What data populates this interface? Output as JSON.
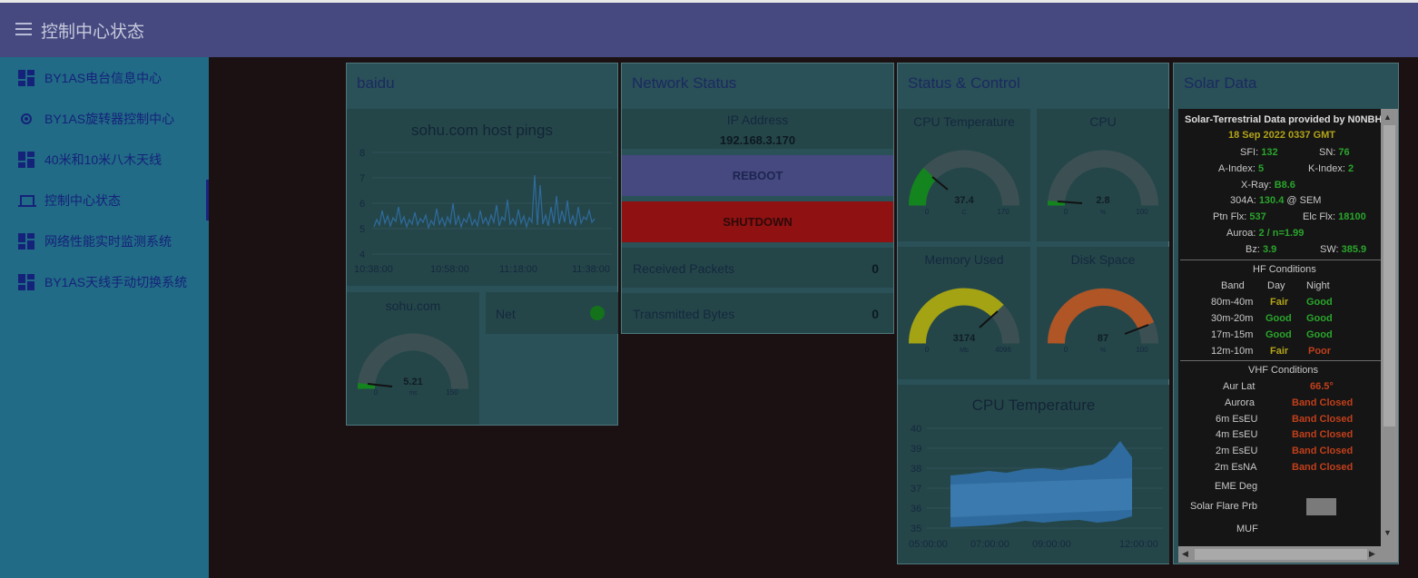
{
  "header": {
    "title": "控制中心状态",
    "menu_icon": "hamburger-icon"
  },
  "sidebar": {
    "items": [
      {
        "label": "BY1AS电台信息中心",
        "icon": "dashboard-icon"
      },
      {
        "label": "BY1AS旋转器控制中心",
        "icon": "target-icon"
      },
      {
        "label": "40米和10米八木天线",
        "icon": "dashboard-icon"
      },
      {
        "label": "控制中心状态",
        "icon": "laptop-icon",
        "active": true
      },
      {
        "label": "网络性能实时监测系统",
        "icon": "dashboard-icon"
      },
      {
        "label": "BY1AS天线手动切换系统",
        "icon": "dashboard-icon"
      }
    ]
  },
  "cards": {
    "baidu": {
      "title": "baidu",
      "ping_chart": {
        "title": "sohu.com host pings",
        "y_ticks": [
          "8",
          "7",
          "6",
          "5",
          "4"
        ],
        "x_ticks": [
          "10:38:00",
          "10:58:00",
          "11:18:00",
          "11:38:00"
        ]
      },
      "gauge": {
        "label": "sohu.com",
        "value": "5.21",
        "unit": "ms",
        "min": "0",
        "max": "150"
      },
      "net": {
        "label": "Net"
      }
    },
    "network": {
      "title": "Network Status",
      "ip_label": "IP Address",
      "ip_value": "192.168.3.170",
      "reboot": "REBOOT",
      "shutdown": "SHUTDOWN",
      "received_label": "Received Packets",
      "received_value": "0",
      "transmitted_label": "Transmitted Bytes",
      "transmitted_value": "0"
    },
    "status": {
      "title": "Status & Control",
      "cpu_temp": {
        "label": "CPU Temperature",
        "value": "37.4",
        "unit": "C",
        "min": "0",
        "max": "170"
      },
      "cpu": {
        "label": "CPU",
        "value": "2.8",
        "unit": "%",
        "min": "0",
        "max": "100"
      },
      "memory": {
        "label": "Memory Used",
        "value": "3174",
        "unit": "Mb",
        "min": "0",
        "max": "4096"
      },
      "disk": {
        "label": "Disk Space",
        "value": "87",
        "unit": "%",
        "min": "0",
        "max": "100"
      },
      "temp_chart": {
        "title": "CPU Temperature",
        "y_ticks": [
          "40",
          "39",
          "38",
          "37",
          "36",
          "35"
        ],
        "x_ticks": [
          "05:00:00",
          "07:00:00",
          "09:00:00",
          "12:00:00"
        ]
      }
    },
    "solar": {
      "title": "Solar Data",
      "header": "Solar-Terrestrial Data provided by N0NBH",
      "date": "18 Sep 2022 0337 GMT",
      "sfi_label": "SFI:",
      "sfi": "132",
      "sn_label": "SN:",
      "sn": "76",
      "aindex_label": "A-Index:",
      "aindex": "5",
      "kindex_label": "K-Index:",
      "kindex": "2",
      "xray_label": "X-Ray:",
      "xray": "B8.6",
      "a304_label": "304A:",
      "a304": "130.4",
      "a304_suffix": "@ SEM",
      "ptn_label": "Ptn Flx:",
      "ptn": "537",
      "elc_label": "Elc Flx:",
      "elc": "18100",
      "auroa_label": "Auroa:",
      "auroa": "2 / n=1.99",
      "bz_label": "Bz:",
      "bz": "3.9",
      "sw_label": "SW:",
      "sw": "385.9",
      "hf_title": "HF Conditions",
      "hf_headers": [
        "Band",
        "Day",
        "Night"
      ],
      "hf_rows": [
        {
          "band": "80m-40m",
          "day": "Fair",
          "night": "Good"
        },
        {
          "band": "30m-20m",
          "day": "Good",
          "night": "Good"
        },
        {
          "band": "17m-15m",
          "day": "Good",
          "night": "Good"
        },
        {
          "band": "12m-10m",
          "day": "Fair",
          "night": "Poor"
        }
      ],
      "vhf_title": "VHF Conditions",
      "vhf_rows": [
        {
          "label": "Aur Lat",
          "value": "66.5°"
        },
        {
          "label": "Aurora",
          "value": "Band Closed"
        },
        {
          "label": "6m EsEU",
          "value": "Band Closed"
        },
        {
          "label": "4m EsEU",
          "value": "Band Closed"
        },
        {
          "label": "2m EsEU",
          "value": "Band Closed"
        },
        {
          "label": "2m EsNA",
          "value": "Band Closed"
        }
      ],
      "eme_label": "EME Deg",
      "flare_label": "Solar Flare Prb",
      "muf_label": "MUF"
    }
  },
  "colors": {
    "header": "#45497f",
    "sidebar": "#216b86",
    "reboot": "#45497f",
    "shutdown": "#8f1111",
    "gauge_green": "#14841e",
    "gauge_yellow": "#a3a314",
    "gauge_orange": "#b05526",
    "chart_line": "#2f6b9e"
  }
}
